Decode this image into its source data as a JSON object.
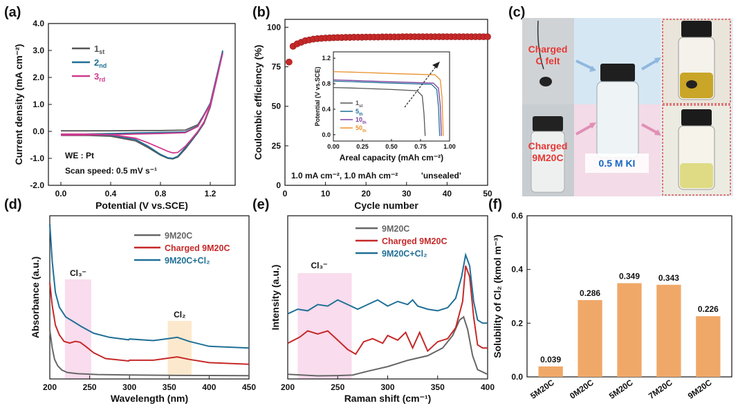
{
  "panels": {
    "a": {
      "label": "(a)"
    },
    "b": {
      "label": "(b)"
    },
    "c": {
      "label": "(c)"
    },
    "d": {
      "label": "(d)"
    },
    "e": {
      "label": "(e)"
    },
    "f": {
      "label": "(f)"
    }
  },
  "chart_data": [
    {
      "id": "a",
      "type": "line",
      "xlabel": "Potential (V vs.SCE)",
      "ylabel": "Current density (mA cm⁻²)",
      "xlim": [
        -0.1,
        1.4
      ],
      "ylim": [
        -2.0,
        4.0
      ],
      "xticks": [
        "0.0",
        "0.4",
        "0.8",
        "1.2"
      ],
      "yticks": [
        "-2.0",
        "-1.0",
        "0.0",
        "1.0",
        "2.0",
        "3.0",
        "4.0"
      ],
      "annotations": [
        "WE : Pt",
        "Scan speed: 0.5 mV s⁻¹"
      ],
      "series": [
        {
          "name": "1st",
          "base": "1",
          "sub": "st",
          "color": "#555555",
          "x": [
            0.0,
            0.2,
            0.4,
            0.6,
            0.7,
            0.8,
            0.86,
            0.9,
            0.94,
            1.0,
            1.05,
            1.1,
            1.15,
            1.2,
            1.25,
            1.3,
            1.2,
            1.1,
            1.0,
            0.8,
            0.6,
            0.4,
            0.2,
            0.0
          ],
          "y": [
            -0.15,
            -0.15,
            -0.18,
            -0.35,
            -0.6,
            -0.88,
            -1.0,
            -1.02,
            -0.95,
            -0.65,
            -0.35,
            -0.05,
            0.3,
            0.9,
            1.9,
            2.95,
            1.0,
            0.25,
            0.05,
            0.03,
            0.03,
            0.02,
            0.02,
            0.02
          ]
        },
        {
          "name": "2nd",
          "base": "2",
          "sub": "nd",
          "color": "#1f6f96",
          "x": [
            0.0,
            0.2,
            0.4,
            0.6,
            0.7,
            0.8,
            0.86,
            0.9,
            0.94,
            1.0,
            1.05,
            1.1,
            1.15,
            1.2,
            1.25,
            1.3,
            1.2,
            1.1,
            1.0,
            0.8,
            0.6,
            0.4,
            0.2,
            0.0
          ],
          "y": [
            -0.12,
            -0.12,
            -0.14,
            -0.3,
            -0.55,
            -0.85,
            -0.98,
            -1.0,
            -0.92,
            -0.6,
            -0.32,
            -0.02,
            0.33,
            0.95,
            1.95,
            3.0,
            1.05,
            0.2,
            -0.02,
            -0.04,
            -0.06,
            -0.08,
            -0.1,
            -0.12
          ]
        },
        {
          "name": "3rd",
          "base": "3",
          "sub": "rd",
          "color": "#d03a8e",
          "x": [
            0.0,
            0.2,
            0.4,
            0.6,
            0.7,
            0.8,
            0.86,
            0.9,
            0.94,
            1.0,
            1.05,
            1.1,
            1.15,
            1.2,
            1.25,
            1.3,
            1.2,
            1.1,
            1.0,
            0.8,
            0.6,
            0.4,
            0.2,
            0.0
          ],
          "y": [
            -0.1,
            -0.1,
            -0.12,
            -0.25,
            -0.42,
            -0.62,
            -0.74,
            -0.8,
            -0.78,
            -0.55,
            -0.28,
            0.0,
            0.35,
            0.95,
            1.9,
            2.9,
            1.0,
            0.18,
            -0.05,
            -0.08,
            -0.1,
            -0.12,
            -0.13,
            -0.14
          ]
        }
      ]
    },
    {
      "id": "b",
      "type": "scatter",
      "xlabel": "Cycle number",
      "ylabel": "Coulombic efficiency (%)",
      "xlim": [
        0,
        50
      ],
      "ylim": [
        0,
        105
      ],
      "xticks": [
        "0",
        "10",
        "20",
        "30",
        "40",
        "50"
      ],
      "yticks": [
        "0",
        "25",
        "50",
        "75",
        "100"
      ],
      "annotations": [
        "1.0 mA cm⁻², 1.0 mAh cm⁻²",
        "'unsealed'"
      ],
      "annotation_colors": [
        "#111111",
        "#c0392b"
      ],
      "marker_color": "#c62828",
      "points_y": [
        78,
        88,
        89.5,
        90.5,
        91.5,
        92,
        92.5,
        92.8,
        93,
        93.2,
        93.3,
        93.4,
        93.5,
        93.5,
        93.6,
        93.6,
        93.7,
        93.7,
        93.7,
        93.8,
        93.8,
        93.8,
        93.8,
        93.9,
        93.9,
        93.9,
        93.9,
        93.9,
        94,
        94,
        94,
        94,
        94,
        94,
        94,
        94,
        94,
        94,
        94,
        94,
        94,
        94,
        94,
        94,
        94,
        94,
        94,
        94,
        94,
        94
      ],
      "inset": {
        "type": "line",
        "xlabel": "Areal capacity (mAh cm⁻²)",
        "ylabel": "Potential (V vs.SCE)",
        "xlim": [
          0,
          1.0
        ],
        "ylim": [
          -0.1,
          1.3
        ],
        "xticks": [
          "0.00",
          "0.25",
          "0.50",
          "0.75",
          "1.00"
        ],
        "yticks": [
          "0.0",
          "0.4",
          "0.8",
          "1.2"
        ],
        "series": [
          {
            "name": "1st",
            "base": "1",
            "sub": "st",
            "color": "#555555",
            "plateau": 0.73,
            "end": 0.79
          },
          {
            "name": "5th",
            "base": "5",
            "sub": "th",
            "color": "#1f6f96",
            "plateau": 0.83,
            "end": 0.915
          },
          {
            "name": "10th",
            "base": "10",
            "sub": "th",
            "color": "#7b3fa0",
            "plateau": 0.85,
            "end": 0.93
          },
          {
            "name": "50th",
            "base": "50",
            "sub": "th",
            "color": "#e8912c",
            "plateau": 0.98,
            "end": 0.945
          }
        ]
      }
    },
    {
      "id": "d",
      "type": "line",
      "xlabel": "Wavelength (nm)",
      "ylabel": "Absorbance (a.u.)",
      "xlim": [
        200,
        450
      ],
      "xticks": [
        "200",
        "250",
        "300",
        "350",
        "400",
        "450"
      ],
      "highlights": [
        {
          "label": "Cl₃⁻",
          "from": 219,
          "to": 252,
          "color": "#f8d3e8",
          "label_color": "#c2185b"
        },
        {
          "label": "Cl₂",
          "from": 348,
          "to": 378,
          "color": "#fbe4c0",
          "label_color": "#d9822b"
        }
      ],
      "series": [
        {
          "name": "9M20C",
          "color": "#666666",
          "x": [
            200,
            203,
            206,
            210,
            215,
            222,
            235,
            260,
            300,
            350,
            400,
            450
          ],
          "y": [
            0.3,
            0.19,
            0.12,
            0.08,
            0.055,
            0.04,
            0.032,
            0.027,
            0.024,
            0.022,
            0.021,
            0.02
          ]
        },
        {
          "name": "Charged 9M20C",
          "color": "#c62828",
          "x": [
            200,
            203,
            207,
            212,
            218,
            225,
            232,
            238,
            245,
            255,
            270,
            299,
            300,
            330,
            345,
            360,
            375,
            400,
            450
          ],
          "y": [
            0.59,
            0.45,
            0.33,
            0.27,
            0.23,
            0.22,
            0.23,
            0.225,
            0.2,
            0.16,
            0.125,
            0.11,
            0.115,
            0.115,
            0.125,
            0.135,
            0.12,
            0.1,
            0.09
          ]
        },
        {
          "name": "9M20C+Cl₂",
          "color": "#1f6f96",
          "x": [
            200,
            203,
            207,
            212,
            220,
            230,
            240,
            255,
            275,
            299,
            300,
            330,
            345,
            360,
            375,
            400,
            450
          ],
          "y": [
            0.95,
            0.72,
            0.53,
            0.44,
            0.38,
            0.35,
            0.32,
            0.28,
            0.255,
            0.24,
            0.245,
            0.235,
            0.245,
            0.255,
            0.23,
            0.2,
            0.19
          ]
        }
      ]
    },
    {
      "id": "e",
      "type": "line",
      "xlabel": "Raman shift (cm⁻¹)",
      "ylabel": "Intensity (a.u.)",
      "xlim": [
        200,
        400
      ],
      "xticks": [
        "200",
        "250",
        "300",
        "350",
        "400"
      ],
      "highlights": [
        {
          "label": "Cl₃⁻",
          "from": 210,
          "to": 264,
          "color": "#f8d3e8",
          "label_color": "#c2185b"
        }
      ],
      "series": [
        {
          "name": "9M20C",
          "color": "#666666",
          "x": [
            200,
            215,
            230,
            250,
            265,
            280,
            300,
            320,
            340,
            355,
            365,
            372,
            376,
            380,
            385,
            390,
            400
          ],
          "y": [
            0.03,
            0.025,
            0.02,
            0.022,
            0.025,
            0.05,
            0.08,
            0.12,
            0.15,
            0.2,
            0.28,
            0.38,
            0.4,
            0.32,
            0.15,
            0.06,
            0.03
          ]
        },
        {
          "name": "Charged 9M20C",
          "color": "#c62828",
          "x": [
            200,
            212,
            220,
            230,
            240,
            250,
            260,
            268,
            276,
            285,
            295,
            300,
            310,
            318,
            325,
            332,
            340,
            350,
            360,
            368,
            375,
            378,
            382,
            386,
            390,
            395,
            400
          ],
          "y": [
            0.23,
            0.27,
            0.31,
            0.29,
            0.31,
            0.25,
            0.19,
            0.16,
            0.24,
            0.26,
            0.23,
            0.28,
            0.25,
            0.3,
            0.2,
            0.3,
            0.18,
            0.24,
            0.26,
            0.33,
            0.5,
            0.73,
            0.66,
            0.4,
            0.22,
            0.2,
            0.2
          ]
        },
        {
          "name": "9M20C+Cl₂",
          "color": "#1f6f96",
          "x": [
            200,
            210,
            220,
            230,
            240,
            250,
            260,
            270,
            280,
            290,
            300,
            310,
            320,
            325,
            330,
            340,
            350,
            360,
            368,
            374,
            378,
            382,
            386,
            390,
            395,
            400
          ],
          "y": [
            0.42,
            0.45,
            0.44,
            0.48,
            0.47,
            0.51,
            0.48,
            0.45,
            0.48,
            0.51,
            0.47,
            0.5,
            0.48,
            0.51,
            0.47,
            0.45,
            0.44,
            0.46,
            0.52,
            0.66,
            0.8,
            0.73,
            0.5,
            0.38,
            0.36,
            0.36
          ]
        }
      ]
    },
    {
      "id": "f",
      "type": "bar",
      "ylabel": "Solubility of Cl₂ (kmol m⁻³)",
      "ylim": [
        0,
        0.6
      ],
      "yticks": [
        "0.0",
        "0.2",
        "0.4",
        "0.6"
      ],
      "bar_color": "#f0a868",
      "categories": [
        "5M20C",
        "0M20C",
        "5M20C",
        "7M20C",
        "9M20C"
      ],
      "category_colors": [
        "#2e7d32",
        "#7b1fa2",
        "#b8a300",
        "#5c6bc0",
        "#d81b60"
      ],
      "values": [
        0.039,
        0.286,
        0.349,
        0.343,
        0.226
      ],
      "value_labels": [
        "0.039",
        "0.286",
        "0.349",
        "0.343",
        "0.226"
      ]
    }
  ],
  "photo_panel": {
    "left_labels": [
      "Charged\nC felt",
      "Charged\n9M20C"
    ],
    "center_label": "0.5 M KI",
    "label_color": "#e53935",
    "center_label_color": "#1565c0"
  }
}
